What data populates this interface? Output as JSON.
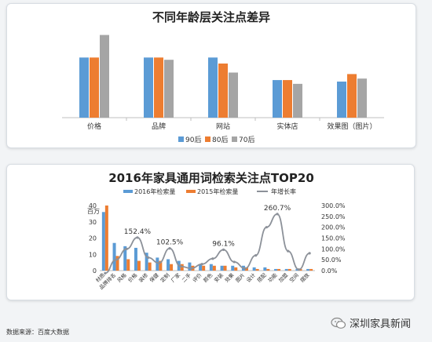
{
  "charts": {
    "chart_data": [
      {
        "type": "bar",
        "title": "不同年龄层关注点差异",
        "categories": [
          "价格",
          "品牌",
          "网站",
          "实体店",
          "效果图（图片）"
        ],
        "series": [
          {
            "name": "90后",
            "values": [
              80,
              80,
              80,
              50,
              48
            ]
          },
          {
            "name": "80后",
            "values": [
              80,
              80,
              72,
              50,
              58
            ]
          },
          {
            "name": "70后",
            "values": [
              110,
              77,
              60,
              45,
              52
            ]
          }
        ],
        "ylim": [
          0,
          120
        ],
        "legend": "bottom",
        "grid": false
      },
      {
        "type": "bar",
        "title": "2016年家具通用词检索关注点TOP20",
        "ylabel": "百万",
        "categories": [
          "材质",
          "品牌排名",
          "风格",
          "价格",
          "装修",
          "保健",
          "定制",
          "厂家",
          "二手",
          "评价",
          "颜色",
          "安装",
          "效果",
          "图片",
          "设计",
          "搭配",
          "功能",
          "加盟",
          "空间",
          "摆放"
        ],
        "series": [
          {
            "name": "2016年检索量",
            "axis": "left",
            "values": [
              36,
              17,
              15,
              14,
              11,
              8,
              7,
              6,
              5,
              4,
              4,
              3,
              3,
              3,
              2,
              2,
              1,
              1,
              1,
              1
            ]
          },
          {
            "name": "2015年检索量",
            "axis": "left",
            "values": [
              40,
              9,
              7,
              6,
              5,
              6,
              4,
              4,
              3,
              3,
              3,
              3,
              2,
              2,
              1,
              1,
              1,
              1,
              1,
              1
            ]
          },
          {
            "name": "年增长率",
            "axis": "right",
            "type": "line",
            "values": [
              -12,
              50,
              100,
              152.4,
              60,
              35,
              102.5,
              20,
              10,
              30,
              55,
              96.1,
              40,
              10,
              70,
              200,
              260.7,
              90,
              5,
              80
            ]
          }
        ],
        "ylim": [
          0,
          40
        ],
        "y2lim": [
          0,
          300
        ],
        "y_ticks": [
          "0",
          "10",
          "20",
          "30",
          "40"
        ],
        "y2_ticks": [
          "0.0%",
          "50.0%",
          "100.0%",
          "150.0%",
          "200.0%",
          "250.0%",
          "300.0%"
        ],
        "annotations": [
          "152.4%",
          "102.5%",
          "96.1%",
          "260.7%"
        ],
        "legend": "top",
        "grid": false
      }
    ]
  },
  "chart1": {
    "colors": [
      "#5b9bd5",
      "#ed7d31",
      "#a5a5a5"
    ]
  },
  "chart2": {
    "colors": [
      "#5b9bd5",
      "#ed7d31",
      "#8c9199"
    ]
  },
  "footer": {
    "source": "数据来源：百度大数据"
  },
  "brand": {
    "name": "深圳家具新闻",
    "icon": "wechat-icon"
  }
}
